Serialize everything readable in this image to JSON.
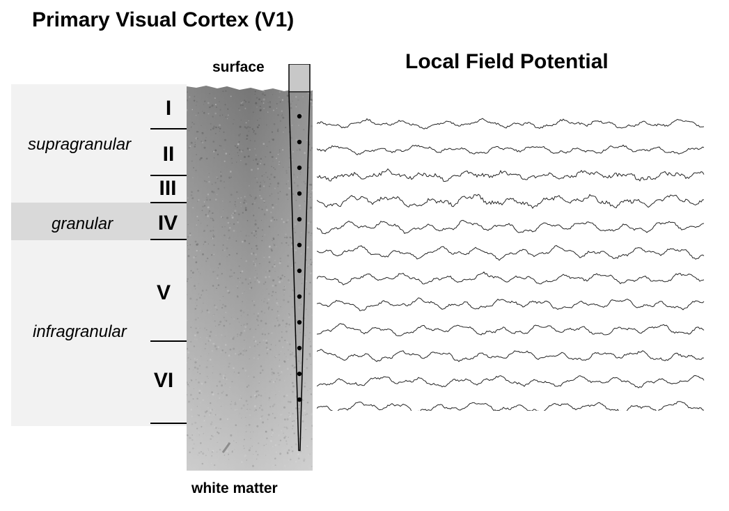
{
  "figure": {
    "title": "Primary Visual Cortex (V1)",
    "lfp_title": "Local Field Potential",
    "surface_label": "surface",
    "white_matter_label": "white matter"
  },
  "zones": {
    "supragranular": "supragranular",
    "granular": "granular",
    "infragranular": "infragranular"
  },
  "layers": [
    "I",
    "II",
    "III",
    "IV",
    "V",
    "VI"
  ],
  "colors": {
    "supragranular_bg": "#f2f2f2",
    "granular_bg": "#d9d9d9",
    "infragranular_bg": "#f2f2f2",
    "trace": "#222222",
    "tissue_dark": "#7a7a7a",
    "tissue_light": "#c4c4c4"
  },
  "electrode": {
    "contacts": 12
  },
  "lfp": {
    "channels": 12
  }
}
